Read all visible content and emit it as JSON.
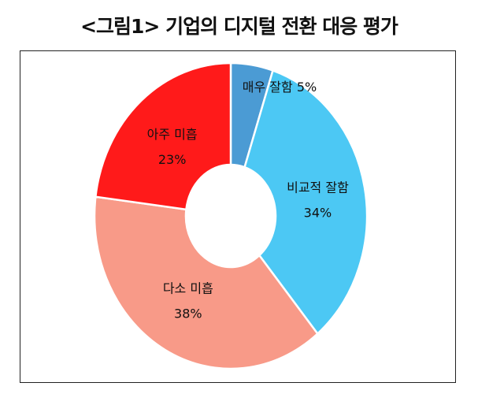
{
  "chart_data": {
    "type": "pie",
    "donut": true,
    "title": "<그림1> 기업의 디지털 전환 대응 평가",
    "start_angle": "12 o'clock",
    "direction": "clockwise",
    "slices": [
      {
        "label": "매우 잘함",
        "value": 5,
        "value_label": "5%",
        "color": "#4B9BD4"
      },
      {
        "label": "비교적 잘함",
        "value": 34,
        "value_label": "34%",
        "color": "#4CC8F4"
      },
      {
        "label": "다소 미흡",
        "value": 38,
        "value_label": "38%",
        "color": "#F89A88"
      },
      {
        "label": "아주 미흡",
        "value": 23,
        "value_label": "23%",
        "color": "#FF1A1A"
      }
    ]
  }
}
